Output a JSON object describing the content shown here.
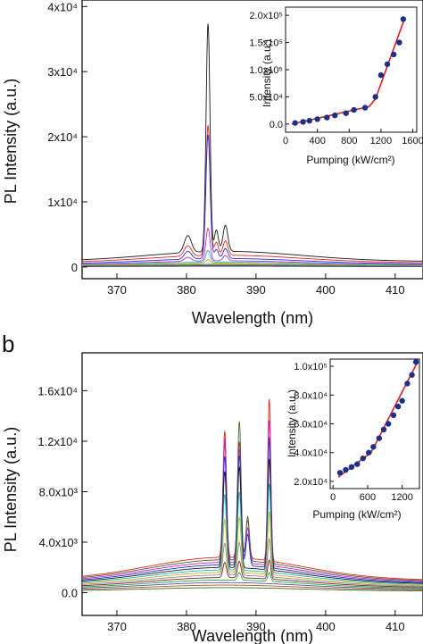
{
  "colors": {
    "axis": "#111111",
    "fit_line": "#e0201b",
    "points": "#1c2f8a",
    "series_palette": [
      "#1a1a1a",
      "#e8221b",
      "#2233cc",
      "#1aa64a",
      "#cc22cc",
      "#1ab2c2",
      "#c9b21c",
      "#8a8a8a",
      "#7a2222",
      "#3a6a2a",
      "#555599",
      "#b05a1a"
    ]
  },
  "chart_data": [
    {
      "id": "a",
      "panel_label": "",
      "type": "line",
      "xlabel": "Wavelength (nm)",
      "ylabel": "PL Intensity (a.u.)",
      "xlim": [
        365,
        414
      ],
      "ylim": [
        -1800,
        41000
      ],
      "x_ticks": [
        370,
        380,
        390,
        400,
        410
      ],
      "x_tick_labels": [
        "370",
        "380",
        "390",
        "400",
        "410"
      ],
      "y_ticks": [
        0,
        10000,
        20000,
        30000,
        40000
      ],
      "y_tick_labels": [
        "0",
        "1x10⁴",
        "2x10⁴",
        "3x10⁴",
        "4x10⁴"
      ],
      "series": [
        {
          "color": "#1a1a1a",
          "baseline": 2400,
          "peaks": [
            [
              380.2,
              2600,
              0.5
            ],
            [
              383.1,
              35000,
              0.28
            ],
            [
              384.3,
              3300,
              0.28
            ],
            [
              385.6,
              4000,
              0.35
            ]
          ]
        },
        {
          "color": "#e8221b",
          "baseline": 1800,
          "peaks": [
            [
              380.2,
              1600,
              0.5
            ],
            [
              383.1,
              20000,
              0.3
            ],
            [
              384.3,
              2000,
              0.28
            ],
            [
              385.6,
              2200,
              0.35
            ]
          ]
        },
        {
          "color": "#2233cc",
          "baseline": 1300,
          "peaks": [
            [
              380.2,
              1200,
              0.5
            ],
            [
              383.1,
              19000,
              0.3
            ],
            [
              384.3,
              1400,
              0.28
            ],
            [
              385.6,
              1500,
              0.35
            ]
          ]
        },
        {
          "color": "#cc22cc",
          "baseline": 950,
          "peaks": [
            [
              380.2,
              600,
              0.5
            ],
            [
              383.1,
              5000,
              0.3
            ],
            [
              385.6,
              800,
              0.35
            ]
          ]
        },
        {
          "color": "#1ab2c2",
          "baseline": 750,
          "peaks": [
            [
              383.1,
              1800,
              0.3
            ]
          ]
        },
        {
          "color": "#c9b21c",
          "baseline": 550,
          "peaks": [
            [
              383.1,
              600,
              0.3
            ]
          ]
        },
        {
          "color": "#1aa64a",
          "baseline": 400,
          "peaks": []
        },
        {
          "color": "#8a8a8a",
          "baseline": 280,
          "peaks": []
        },
        {
          "color": "#7a2222",
          "baseline": 180,
          "peaks": []
        },
        {
          "color": "#555599",
          "baseline": 100,
          "peaks": []
        }
      ],
      "inset": {
        "type": "scatter",
        "xlabel": "Pumping (kW/cm²)",
        "ylabel": "Intensity (a.u.)",
        "xlim": [
          0,
          1650
        ],
        "ylim": [
          -15000,
          215000
        ],
        "x_ticks": [
          0,
          400,
          800,
          1200,
          1600
        ],
        "x_tick_labels": [
          "0",
          "400",
          "800",
          "1200",
          "1600"
        ],
        "y_ticks": [
          0,
          50000,
          100000,
          150000,
          200000
        ],
        "y_tick_labels": [
          "0.0",
          "5.0x10⁴",
          "1.0x10⁵",
          "1.5x10⁵",
          "2.0x10⁵"
        ],
        "points": [
          [
            120,
            2000
          ],
          [
            220,
            4000
          ],
          [
            300,
            6000
          ],
          [
            400,
            9000
          ],
          [
            520,
            12000
          ],
          [
            620,
            16000
          ],
          [
            760,
            20000
          ],
          [
            860,
            26000
          ],
          [
            1000,
            30000
          ],
          [
            1130,
            50000
          ],
          [
            1200,
            90000
          ],
          [
            1280,
            110000
          ],
          [
            1360,
            128000
          ],
          [
            1430,
            150000
          ],
          [
            1480,
            193000
          ]
        ],
        "fit": [
          [
            80,
            0
          ],
          [
            1050,
            32000
          ],
          [
            1130,
            46000
          ],
          [
            1500,
            195000
          ]
        ]
      }
    },
    {
      "id": "b",
      "panel_label": "b",
      "type": "line",
      "xlabel": "Wavelength (nm)",
      "ylabel": "PL Intensity (a.u.)",
      "xlim": [
        365,
        414
      ],
      "ylim": [
        -1800,
        19000
      ],
      "x_ticks": [
        370,
        380,
        390,
        400,
        410
      ],
      "x_tick_labels": [
        "370",
        "380",
        "390",
        "400",
        "410"
      ],
      "y_ticks": [
        0,
        4000,
        8000,
        12000,
        16000
      ],
      "y_tick_labels": [
        "0.0",
        "4.0x10³",
        "8.0x10³",
        "1.2x10⁴",
        "1.6x10⁴"
      ],
      "series": [
        {
          "color": "#e8221b",
          "baseline": 2800,
          "peaks": [
            [
              385.5,
              10000,
              0.25
            ],
            [
              387.6,
              9200,
              0.25
            ],
            [
              388.8,
              3000,
              0.25
            ],
            [
              391.9,
              12800,
              0.22
            ]
          ]
        },
        {
          "color": "#3a6a2a",
          "baseline": 2600,
          "peaks": [
            [
              385.5,
              9200,
              0.25
            ],
            [
              387.6,
              11000,
              0.25
            ],
            [
              388.8,
              3500,
              0.25
            ],
            [
              391.9,
              10000,
              0.22
            ]
          ]
        },
        {
          "color": "#cc22cc",
          "baseline": 2400,
          "peaks": [
            [
              385.5,
              9800,
              0.25
            ],
            [
              387.6,
              9000,
              0.25
            ],
            [
              388.8,
              2800,
              0.25
            ],
            [
              391.9,
              11500,
              0.22
            ]
          ]
        },
        {
          "color": "#2233cc",
          "baseline": 2200,
          "peaks": [
            [
              385.5,
              8600,
              0.25
            ],
            [
              387.6,
              8700,
              0.25
            ],
            [
              388.8,
              2500,
              0.25
            ],
            [
              391.9,
              10200,
              0.22
            ]
          ]
        },
        {
          "color": "#1a1a1a",
          "baseline": 2000,
          "peaks": [
            [
              385.5,
              7600,
              0.25
            ],
            [
              387.6,
              8000,
              0.25
            ],
            [
              391.9,
              8800,
              0.22
            ]
          ]
        },
        {
          "color": "#1ab2c2",
          "baseline": 1800,
          "peaks": [
            [
              385.5,
              6000,
              0.25
            ],
            [
              387.6,
              6200,
              0.25
            ],
            [
              391.9,
              7000,
              0.22
            ]
          ]
        },
        {
          "color": "#c9b21c",
          "baseline": 1600,
          "peaks": [
            [
              385.5,
              4200,
              0.25
            ],
            [
              387.6,
              4400,
              0.25
            ],
            [
              391.9,
              5000,
              0.22
            ]
          ]
        },
        {
          "color": "#8a8a8a",
          "baseline": 1400,
          "peaks": [
            [
              385.5,
              2500,
              0.25
            ],
            [
              387.6,
              2600,
              0.25
            ],
            [
              391.9,
              3000,
              0.22
            ]
          ]
        },
        {
          "color": "#7a2222",
          "baseline": 1200,
          "peaks": [
            [
              385.5,
              1200,
              0.25
            ],
            [
              387.6,
              1300,
              0.25
            ],
            [
              391.9,
              1500,
              0.22
            ]
          ]
        },
        {
          "color": "#1aa64a",
          "baseline": 1000,
          "peaks": [
            [
              387.6,
              600,
              0.25
            ],
            [
              391.9,
              700,
              0.22
            ]
          ]
        },
        {
          "color": "#555599",
          "baseline": 800,
          "peaks": []
        },
        {
          "color": "#b05a1a",
          "baseline": 600,
          "peaks": []
        },
        {
          "color": "#3a6a2a",
          "baseline": 400,
          "peaks": []
        }
      ],
      "inset": {
        "type": "scatter",
        "xlabel": "Pumping (kW/cm²)",
        "ylabel": "Intensity (a.u.)",
        "xlim": [
          -50,
          1500
        ],
        "ylim": [
          15000,
          105000
        ],
        "x_ticks": [
          0,
          600,
          1200
        ],
        "x_tick_labels": [
          "0",
          "600",
          "1200"
        ],
        "y_ticks": [
          20000,
          40000,
          60000,
          80000,
          100000
        ],
        "y_tick_labels": [
          "2.0x10⁴",
          "4.0x10⁴",
          "6.0x10⁴",
          "8.0x10⁴",
          "1.0x10⁵"
        ],
        "points": [
          [
            120,
            26000
          ],
          [
            220,
            28000
          ],
          [
            320,
            30000
          ],
          [
            420,
            32000
          ],
          [
            520,
            36000
          ],
          [
            620,
            40000
          ],
          [
            700,
            44000
          ],
          [
            800,
            50000
          ],
          [
            880,
            56000
          ],
          [
            960,
            60000
          ],
          [
            1050,
            66000
          ],
          [
            1130,
            72000
          ],
          [
            1200,
            76000
          ],
          [
            1290,
            88000
          ],
          [
            1370,
            94000
          ],
          [
            1440,
            103000
          ]
        ],
        "fit": [
          [
            90,
            23000
          ],
          [
            660,
            40000
          ],
          [
            1480,
            104000
          ]
        ]
      }
    }
  ]
}
